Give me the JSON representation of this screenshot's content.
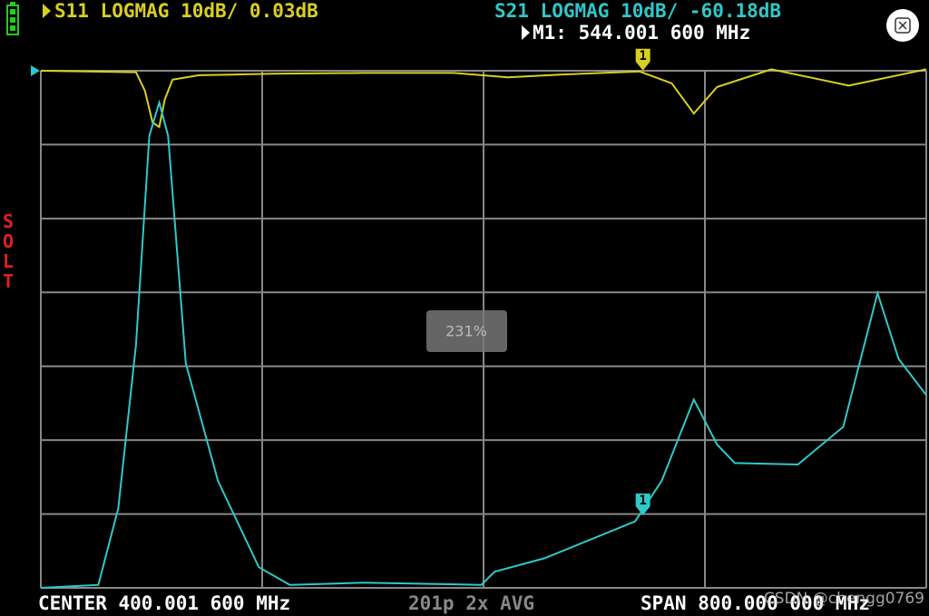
{
  "chart_data": {
    "type": "line",
    "trace_headers": [
      "S11 LOGMAG 10dB/ 0.03dB",
      "S21 LOGMAG 10dB/ -60.18dB"
    ],
    "marker_header": "M1: 544.001 600 MHz",
    "footer": {
      "center": "CENTER  400.001 600 MHz",
      "points": "201p 2x AVG",
      "span": "SPAN  800.000 000 MHz"
    },
    "calibration": "SOLT",
    "zoom": "231%",
    "watermark": "CSDN @chengg0769",
    "xlim": [
      0,
      800
    ],
    "xticks": [
      0,
      200,
      400,
      600,
      800
    ],
    "ylim": [
      -70,
      0
    ],
    "yticks": [
      -70,
      -60,
      -50,
      -40,
      -30,
      -20,
      -10,
      0
    ],
    "grid": true,
    "series": [
      {
        "name": "S11",
        "color": "#d8d020",
        "x": [
          0,
          86,
          94,
          101,
          107,
          112,
          119,
          143,
          209,
          291,
          373,
          422,
          471,
          541,
          570,
          590,
          611,
          660,
          730,
          800
        ],
        "values": [
          0,
          -0.2,
          -2.7,
          -7,
          -7.6,
          -3.9,
          -1.2,
          -0.6,
          -0.4,
          -0.3,
          -0.3,
          -0.9,
          -0.5,
          -0.1,
          -1.7,
          -5.8,
          -2.2,
          0.2,
          -2,
          0.2
        ]
      },
      {
        "name": "S21",
        "color": "#30c8c8",
        "x": [
          0,
          52,
          70,
          86,
          98,
          107,
          115,
          131,
          160,
          197,
          225,
          291,
          398,
          410,
          455,
          537,
          561,
          590,
          611,
          627,
          684,
          725,
          756,
          775,
          800
        ],
        "values": [
          -70,
          -69.6,
          -59.2,
          -37.1,
          -8.8,
          -4.3,
          -8.8,
          -39.6,
          -55.5,
          -67.2,
          -69.6,
          -69.3,
          -69.6,
          -67.8,
          -66,
          -61,
          -55.5,
          -44.5,
          -50.6,
          -53.1,
          -53.3,
          -48.2,
          -30.1,
          -39,
          -43.9
        ]
      }
    ],
    "markers": [
      {
        "label": "1",
        "x": 544.0016,
        "values": [
          0.03,
          -60.18
        ]
      }
    ]
  }
}
